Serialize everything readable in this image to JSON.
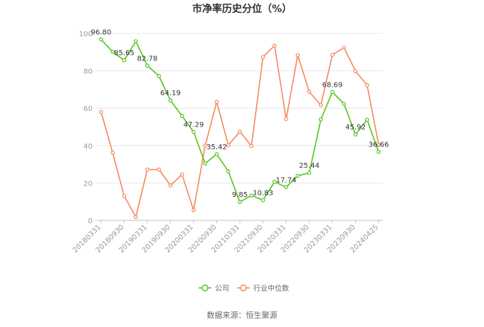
{
  "chart_data": {
    "type": "line",
    "title": "市净率历史分位（%）",
    "xlabel": "",
    "ylabel": "",
    "ylim": [
      0,
      100
    ],
    "yticks": [
      0,
      20,
      40,
      60,
      80,
      100
    ],
    "grid": true,
    "legend_position": "bottom",
    "x": [
      "20180331",
      "20180630",
      "20180930",
      "20181231",
      "20190331",
      "20190630",
      "20190930",
      "20191231",
      "20200331",
      "20200630",
      "20200930",
      "20201231",
      "20210331",
      "20210630",
      "20210930",
      "20211231",
      "20220331",
      "20220630",
      "20220930",
      "20221231",
      "20230331",
      "20230630",
      "20230930",
      "20231231",
      "20240425"
    ],
    "tick_labels": [
      "20180331",
      "20180930",
      "20190331",
      "20190930",
      "20200331",
      "20200930",
      "20210331",
      "20210930",
      "20220331",
      "20220930",
      "20230331",
      "20230930",
      "20240425"
    ],
    "series": [
      {
        "name": "公司",
        "color": "#52c41a",
        "values": [
          96.8,
          90.2,
          85.65,
          95.8,
          82.78,
          77.2,
          64.19,
          55.8,
          47.29,
          30.4,
          35.42,
          26.2,
          9.85,
          13.3,
          10.83,
          20.6,
          17.74,
          23.8,
          25.44,
          54.0,
          68.69,
          62.3,
          45.92,
          53.8,
          36.66
        ],
        "data_labels": [
          {
            "index": 0,
            "text": "96.80"
          },
          {
            "index": 2,
            "text": "85.65"
          },
          {
            "index": 4,
            "text": "82.78"
          },
          {
            "index": 6,
            "text": "64.19"
          },
          {
            "index": 8,
            "text": "47.29"
          },
          {
            "index": 10,
            "text": "35.42"
          },
          {
            "index": 12,
            "text": "9.85"
          },
          {
            "index": 14,
            "text": "10.83"
          },
          {
            "index": 16,
            "text": "17.74"
          },
          {
            "index": 18,
            "text": "25.44"
          },
          {
            "index": 20,
            "text": "68.69"
          },
          {
            "index": 22,
            "text": "45.92"
          },
          {
            "index": 24,
            "text": "36.66"
          }
        ]
      },
      {
        "name": "行业中位数",
        "color": "#f4875b",
        "values": [
          58.0,
          36.2,
          13.0,
          1.8,
          27.2,
          27.2,
          18.7,
          24.5,
          5.4,
          40.0,
          63.4,
          40.2,
          47.5,
          39.8,
          87.4,
          93.5,
          54.2,
          88.3,
          68.8,
          61.6,
          88.5,
          92.4,
          79.8,
          72.3,
          40.5
        ]
      }
    ]
  },
  "source_text": "数据来源：恒生聚源"
}
